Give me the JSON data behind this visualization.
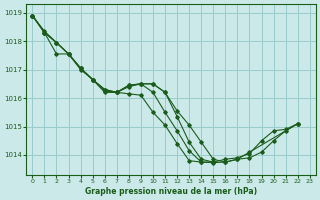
{
  "xlabel": "Graphe pression niveau de la mer (hPa)",
  "background_color": "#cce9e9",
  "grid_color": "#99cccc",
  "line_color": "#1a5c1a",
  "xlim": [
    -0.5,
    23.5
  ],
  "ylim": [
    1013.3,
    1019.3
  ],
  "yticks": [
    1014,
    1015,
    1016,
    1017,
    1018,
    1019
  ],
  "xticks": [
    0,
    1,
    2,
    3,
    4,
    5,
    6,
    7,
    8,
    9,
    10,
    11,
    12,
    13,
    14,
    15,
    16,
    17,
    18,
    19,
    20,
    21,
    22,
    23
  ],
  "series": [
    {
      "x": [
        0,
        1,
        2,
        3,
        4,
        5,
        6,
        7,
        8,
        9,
        10,
        11,
        12,
        13,
        14,
        15,
        16,
        17,
        18,
        22
      ],
      "y": [
        1018.9,
        1018.3,
        1017.95,
        1017.55,
        1017.0,
        1016.65,
        1016.2,
        1016.2,
        1016.45,
        1016.5,
        1016.5,
        1016.2,
        1015.55,
        1015.05,
        1014.45,
        1013.85,
        1013.75,
        1013.85,
        1014.1,
        1015.1
      ]
    },
    {
      "x": [
        0,
        1,
        2,
        3,
        4,
        5,
        6,
        7,
        8,
        9,
        10,
        11,
        12,
        13,
        14,
        15,
        16,
        17,
        18,
        19,
        20,
        21,
        22
      ],
      "y": [
        1018.9,
        1018.35,
        1017.95,
        1017.55,
        1017.05,
        1016.65,
        1016.25,
        1016.2,
        1016.4,
        1016.5,
        1016.2,
        1015.5,
        1014.85,
        1014.15,
        1013.75,
        1013.75,
        1013.85,
        1013.9,
        1014.05,
        1014.5,
        1014.85,
        1014.9,
        1015.1
      ]
    },
    {
      "x": [
        0,
        1,
        2,
        3,
        4,
        5,
        6,
        7,
        8,
        9,
        10,
        11,
        12,
        13,
        14,
        15
      ],
      "y": [
        1018.9,
        1018.3,
        1017.95,
        1017.55,
        1017.05,
        1016.65,
        1016.3,
        1016.2,
        1016.45,
        1016.5,
        1016.5,
        1016.2,
        1015.35,
        1014.45,
        1013.85,
        1013.75
      ]
    },
    {
      "x": [
        0,
        1,
        2,
        3,
        4,
        5,
        6,
        7,
        8,
        9,
        10,
        11,
        12,
        13,
        14,
        15,
        16,
        17,
        18,
        19,
        20,
        21,
        22
      ],
      "y": [
        1018.9,
        1018.3,
        1017.55,
        1017.55,
        1017.05,
        1016.65,
        1016.3,
        1016.2,
        1016.15,
        1016.1,
        1015.5,
        1015.05,
        1014.4,
        1013.8,
        1013.75,
        1013.73,
        1013.75,
        1013.85,
        1013.9,
        1014.1,
        1014.5,
        1014.85,
        1015.1
      ]
    }
  ]
}
